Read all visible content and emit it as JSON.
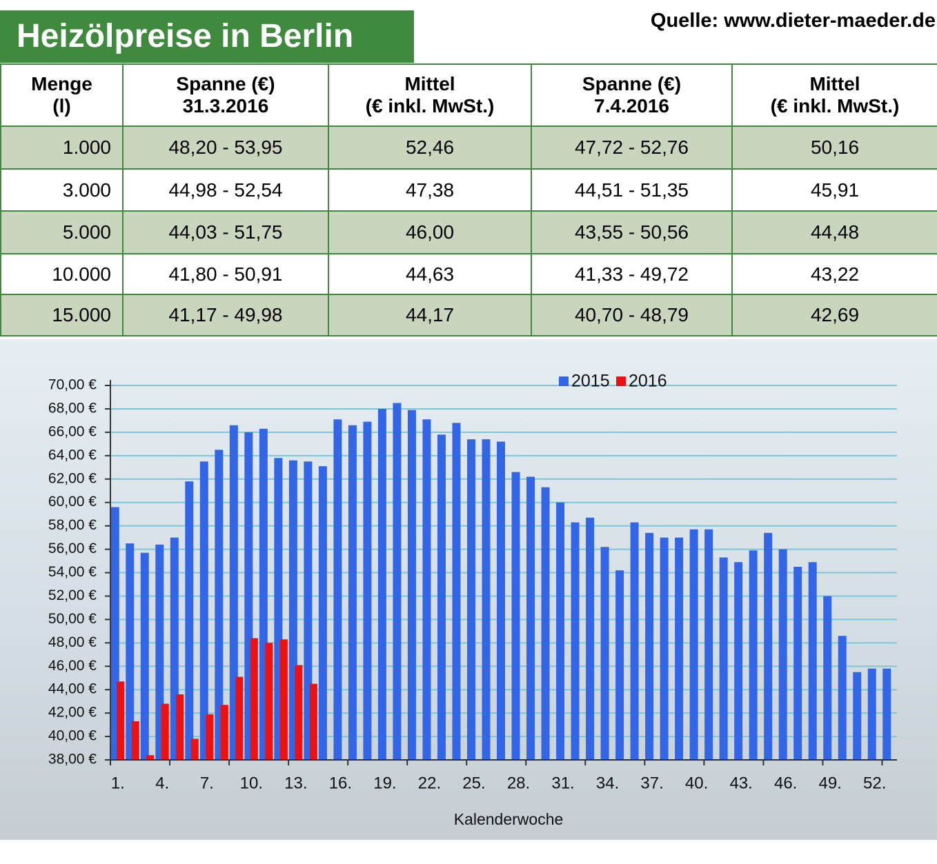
{
  "title": "Heizölpreise in Berlin",
  "source": "Quelle: www.dieter-maeder.de",
  "table": {
    "headers": [
      [
        "Menge",
        "(l)"
      ],
      [
        "Spanne (€)",
        "31.3.2016"
      ],
      [
        "Mittel",
        "(€ inkl. MwSt.)"
      ],
      [
        "Spanne (€)",
        "7.4.2016"
      ],
      [
        "Mittel",
        "(€ inkl. MwSt.)"
      ]
    ],
    "rows": [
      [
        "1.000",
        "48,20 - 53,95",
        "52,46",
        "47,72 - 52,76",
        "50,16"
      ],
      [
        "3.000",
        "44,98 - 52,54",
        "47,38",
        "44,51 - 51,35",
        "45,91"
      ],
      [
        "5.000",
        "44,03 - 51,75",
        "46,00",
        "43,55 - 50,56",
        "44,48"
      ],
      [
        "10.000",
        "41,80 - 50,91",
        "44,63",
        "41,33 - 49,72",
        "43,22"
      ],
      [
        "15.000",
        "41,17 - 49,98",
        "44,17",
        "40,70 - 48,79",
        "42,69"
      ]
    ]
  },
  "chart_data": {
    "type": "bar",
    "x_label": "Kalenderwoche",
    "legend": "top",
    "categories": [
      "1.",
      null,
      null,
      "4.",
      null,
      null,
      "7.",
      null,
      null,
      "10.",
      null,
      null,
      "13.",
      null,
      null,
      "16.",
      null,
      null,
      "19.",
      null,
      null,
      "22.",
      null,
      null,
      "25.",
      null,
      null,
      "28.",
      null,
      null,
      "31.",
      null,
      null,
      "34.",
      null,
      null,
      "37.",
      null,
      null,
      "40.",
      null,
      null,
      "43.",
      null,
      null,
      "46.",
      null,
      null,
      "49.",
      null,
      null,
      "52.",
      null
    ],
    "series": [
      {
        "name": "2015",
        "color": "#3366e6",
        "values": [
          59.6,
          56.5,
          55.7,
          56.4,
          57.0,
          61.8,
          63.5,
          64.5,
          66.6,
          66.0,
          66.3,
          63.8,
          63.6,
          63.5,
          63.1,
          67.1,
          66.6,
          66.9,
          68.0,
          68.5,
          67.9,
          67.1,
          65.8,
          66.8,
          65.4,
          65.4,
          65.2,
          62.6,
          62.2,
          61.3,
          60.0,
          58.3,
          58.7,
          56.2,
          54.2,
          58.3,
          57.4,
          57.0,
          57.0,
          57.7,
          57.7,
          55.3,
          54.9,
          55.9,
          57.4,
          56.0,
          54.5,
          54.9,
          52.0,
          48.6,
          45.5,
          45.8,
          45.8
        ]
      },
      {
        "name": "2016",
        "color": "#ee1111",
        "values": [
          44.7,
          41.3,
          38.4,
          42.8,
          43.6,
          39.8,
          41.9,
          42.7,
          45.1,
          48.4,
          48.0,
          48.3,
          46.1,
          44.5,
          null,
          null,
          null,
          null,
          null,
          null,
          null,
          null,
          null,
          null,
          null,
          null,
          null,
          null,
          null,
          null,
          null,
          null,
          null,
          null,
          null,
          null,
          null,
          null,
          null,
          null,
          null,
          null,
          null,
          null,
          null,
          null,
          null,
          null,
          null,
          null,
          null,
          null,
          null
        ]
      }
    ],
    "ylim": [
      38,
      70
    ],
    "yticks": [
      {
        "value": 38,
        "label": "38,00 €"
      },
      {
        "value": 40,
        "label": "40,00 €"
      },
      {
        "value": 42,
        "label": "42,00 €"
      },
      {
        "value": 44,
        "label": "44,00 €"
      },
      {
        "value": 46,
        "label": "46,00 €"
      },
      {
        "value": 48,
        "label": "48,00 €"
      },
      {
        "value": 50,
        "label": "50,00 €"
      },
      {
        "value": 52,
        "label": "52,00 €"
      },
      {
        "value": 54,
        "label": "54,00 €"
      },
      {
        "value": 56,
        "label": "56,00 €"
      },
      {
        "value": 58,
        "label": "58,00 €"
      },
      {
        "value": 60,
        "label": "60,00 €"
      },
      {
        "value": 62,
        "label": "62,00 €"
      },
      {
        "value": 64,
        "label": "64,00 €"
      },
      {
        "value": 66,
        "label": "66,00 €"
      },
      {
        "value": 68,
        "label": "68,00 €"
      },
      {
        "value": 70,
        "label": "70,00 €"
      }
    ],
    "grid": true
  }
}
